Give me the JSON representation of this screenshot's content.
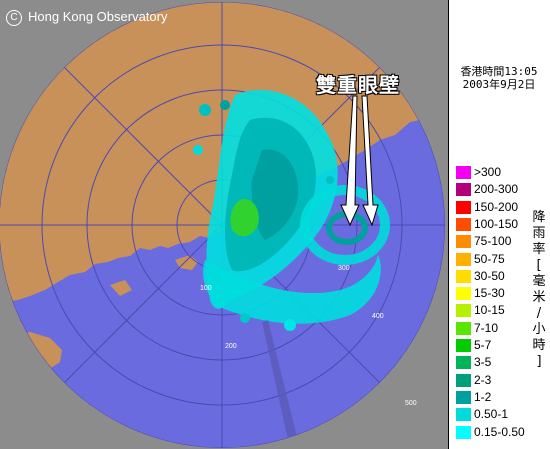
{
  "copyright": "Hong Kong Observatory",
  "timestamp": {
    "line1": "香港時間13:05",
    "line2": "2003年9月2日"
  },
  "annotation": "雙重眼壁",
  "legend": {
    "unit": [
      "降",
      "雨",
      "率",
      "[",
      "毫",
      "米",
      "/",
      "小",
      "時",
      "]"
    ],
    "items": [
      {
        "label": ">300",
        "color": "#f200f2"
      },
      {
        "label": "200-300",
        "color": "#b3007a"
      },
      {
        "label": "150-200",
        "color": "#ff0000"
      },
      {
        "label": "100-150",
        "color": "#ff4d00"
      },
      {
        "label": "75-100",
        "color": "#ff8c00"
      },
      {
        "label": "50-75",
        "color": "#ffb000"
      },
      {
        "label": "30-50",
        "color": "#ffdd00"
      },
      {
        "label": "15-30",
        "color": "#ffff00"
      },
      {
        "label": "10-15",
        "color": "#b4f000"
      },
      {
        "label": "7-10",
        "color": "#5ae600"
      },
      {
        "label": "5-7",
        "color": "#00cc00"
      },
      {
        "label": "3-5",
        "color": "#00b45a"
      },
      {
        "label": "2-3",
        "color": "#00a078"
      },
      {
        "label": "1-2",
        "color": "#00a0a0"
      },
      {
        "label": "0.50-1",
        "color": "#00dcdc"
      },
      {
        "label": "0.15-0.50",
        "color": "#00ffff"
      }
    ]
  },
  "range_labels": [
    "100",
    "200",
    "300",
    "400",
    "500"
  ],
  "colors": {
    "land": "#c8915a",
    "sea": "#6b6be0",
    "outside": "#8a8a8a"
  }
}
